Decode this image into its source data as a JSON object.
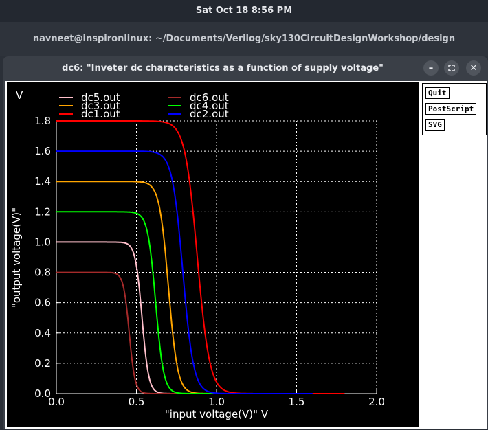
{
  "system": {
    "clock": "Sat Oct 18   8:56 PM"
  },
  "terminal": {
    "title": "navneet@inspironlinux: ~/Documents/Verilog/sky130CircuitDesignWorkshop/design"
  },
  "window": {
    "title": "dc6: \"Inveter dc characteristics as a function of supply voltage\""
  },
  "buttons": {
    "quit": "Quit",
    "postscript": "PostScript",
    "svg": "SVG"
  },
  "chart_data": {
    "type": "line",
    "title": "",
    "xlabel": "\"input voltage(V)\"  V",
    "ylabel": "\"output voltage(V)\"",
    "y_unit": "V",
    "xlim": [
      0,
      2
    ],
    "ylim": [
      0,
      1.8
    ],
    "xticks": [
      "0.0",
      "0.5",
      "1.0",
      "1.5",
      "2.0"
    ],
    "yticks": [
      "0.0",
      "0.2",
      "0.4",
      "0.6",
      "0.8",
      "1.0",
      "1.2",
      "1.4",
      "1.6",
      "1.8"
    ],
    "grid": true,
    "legend_position": "top",
    "series": [
      {
        "name": "dc5.out",
        "color": "#ffc0cb",
        "vdd": 1.0,
        "vm": 0.535,
        "k": 48,
        "xmax": 1.0
      },
      {
        "name": "dc6.out",
        "color": "#a52a2a",
        "vdd": 0.8,
        "vm": 0.455,
        "k": 55,
        "xmax": 0.8
      },
      {
        "name": "dc3.out",
        "color": "#ffa500",
        "vdd": 1.4,
        "vm": 0.7,
        "k": 35,
        "xmax": 1.4
      },
      {
        "name": "dc4.out",
        "color": "#00ff00",
        "vdd": 1.2,
        "vm": 0.62,
        "k": 40,
        "xmax": 1.2
      },
      {
        "name": "dc1.out",
        "color": "#ff0000",
        "vdd": 1.8,
        "vm": 0.88,
        "k": 26,
        "xmax": 1.8
      },
      {
        "name": "dc2.out",
        "color": "#0000ff",
        "vdd": 1.6,
        "vm": 0.79,
        "k": 30,
        "xmax": 1.6
      }
    ]
  }
}
